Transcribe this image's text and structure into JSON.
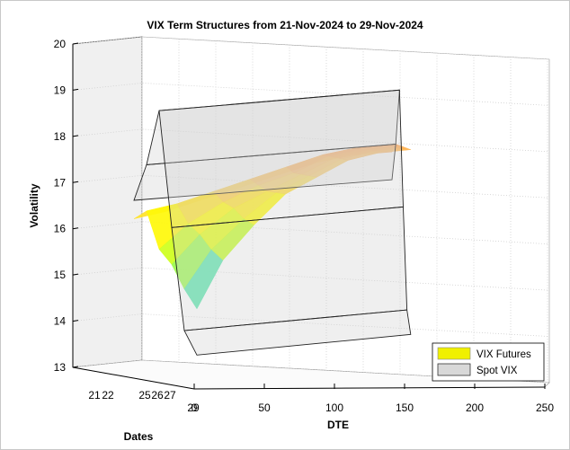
{
  "chart_data": {
    "type": "surface3d",
    "title": "VIX Term Structures from 21-Nov-2024 to 29-Nov-2024",
    "zlabel": "Volatility",
    "xlabel": "DTE",
    "ylabel": "Dates",
    "zlim": [
      13,
      20
    ],
    "z_ticks": [
      "13",
      "14",
      "15",
      "16",
      "17",
      "18",
      "19",
      "20"
    ],
    "xlim": [
      0,
      250
    ],
    "x_ticks": [
      "0",
      "50",
      "100",
      "150",
      "200",
      "250"
    ],
    "date_ticks": [
      "21",
      "22",
      "25",
      "26",
      "27",
      "29"
    ],
    "grid": true,
    "legend": {
      "position": "bottom-right",
      "entries": [
        {
          "name": "VIX Futures",
          "color": "#f0f000"
        },
        {
          "name": "Spot VIX",
          "color": "#d8d8d8"
        }
      ]
    },
    "dates": [
      "21",
      "22",
      "25",
      "26",
      "27",
      "29"
    ],
    "dte": [
      0,
      25,
      55,
      85,
      115,
      145,
      175,
      205
    ],
    "futures": [
      [
        16.8,
        16.9,
        17.1,
        17.3,
        17.5,
        17.7,
        17.8,
        17.8
      ],
      [
        16.9,
        17.0,
        17.2,
        17.4,
        17.6,
        17.8,
        17.9,
        17.9
      ],
      [
        16.0,
        16.5,
        16.9,
        17.2,
        17.4,
        17.7,
        17.8,
        17.8
      ],
      [
        15.6,
        16.2,
        16.7,
        17.0,
        17.3,
        17.6,
        17.7,
        17.7
      ],
      [
        15.0,
        15.8,
        16.4,
        16.9,
        17.2,
        17.5,
        17.6,
        17.6
      ],
      [
        14.5,
        15.5,
        16.2,
        16.8,
        17.1,
        17.4,
        17.5,
        17.5
      ]
    ],
    "spot": [
      {
        "date": "21",
        "value": 17.2
      },
      {
        "date": "22",
        "value": 17.9
      },
      {
        "date": "25",
        "value": 19.0
      },
      {
        "date": "26",
        "value": 16.4
      },
      {
        "date": "27",
        "value": 14.1
      },
      {
        "date": "29",
        "value": 13.5
      }
    ]
  }
}
